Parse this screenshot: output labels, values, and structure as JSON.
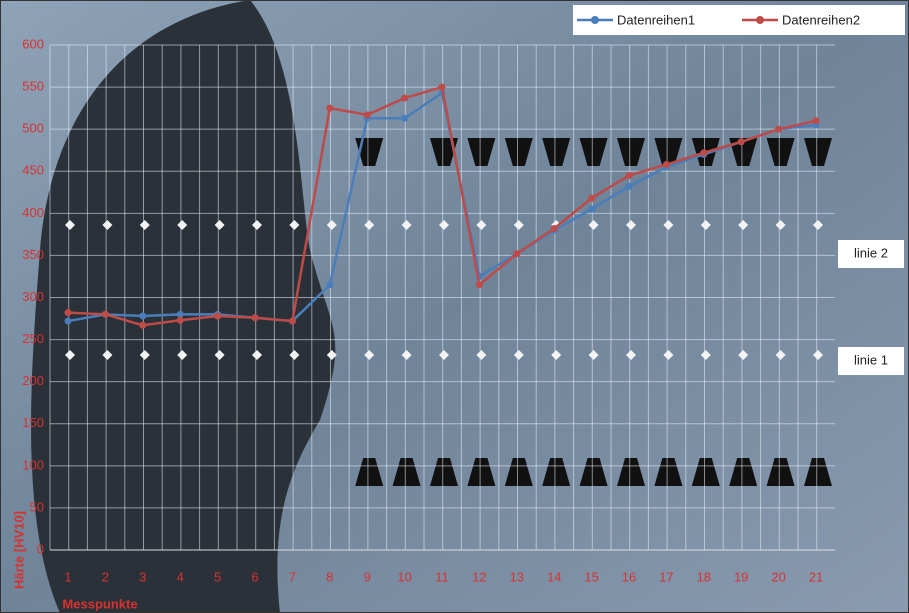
{
  "chart_data": {
    "type": "line",
    "x_label": "Messpunkte",
    "y_label": "Härte [HV10]",
    "categories": [
      "1",
      "2",
      "3",
      "4",
      "5",
      "6",
      "7",
      "8",
      "9",
      "10",
      "11",
      "12",
      "13",
      "14",
      "15",
      "16",
      "17",
      "18",
      "19",
      "20",
      "21"
    ],
    "series": [
      {
        "name": "Datenreihen1",
        "color": "#4a7ebb",
        "values": [
          272,
          280,
          278,
          280,
          280,
          276,
          272,
          315,
          513,
          513,
          543,
          325,
          352,
          380,
          405,
          432,
          455,
          470,
          485,
          500,
          505
        ]
      },
      {
        "name": "Datenreihen2",
        "color": "#be4b48",
        "values": [
          282,
          280,
          267,
          273,
          278,
          276,
          272,
          525,
          517,
          537,
          550,
          315,
          352,
          382,
          418,
          445,
          458,
          472,
          485,
          500,
          510
        ]
      }
    ],
    "ylim": [
      0,
      600
    ],
    "yticks": [
      0,
      50,
      100,
      150,
      200,
      250,
      300,
      350,
      400,
      450,
      500,
      550,
      600
    ],
    "grid": true,
    "annotations": [
      "linie 2",
      "linie 1"
    ]
  }
}
